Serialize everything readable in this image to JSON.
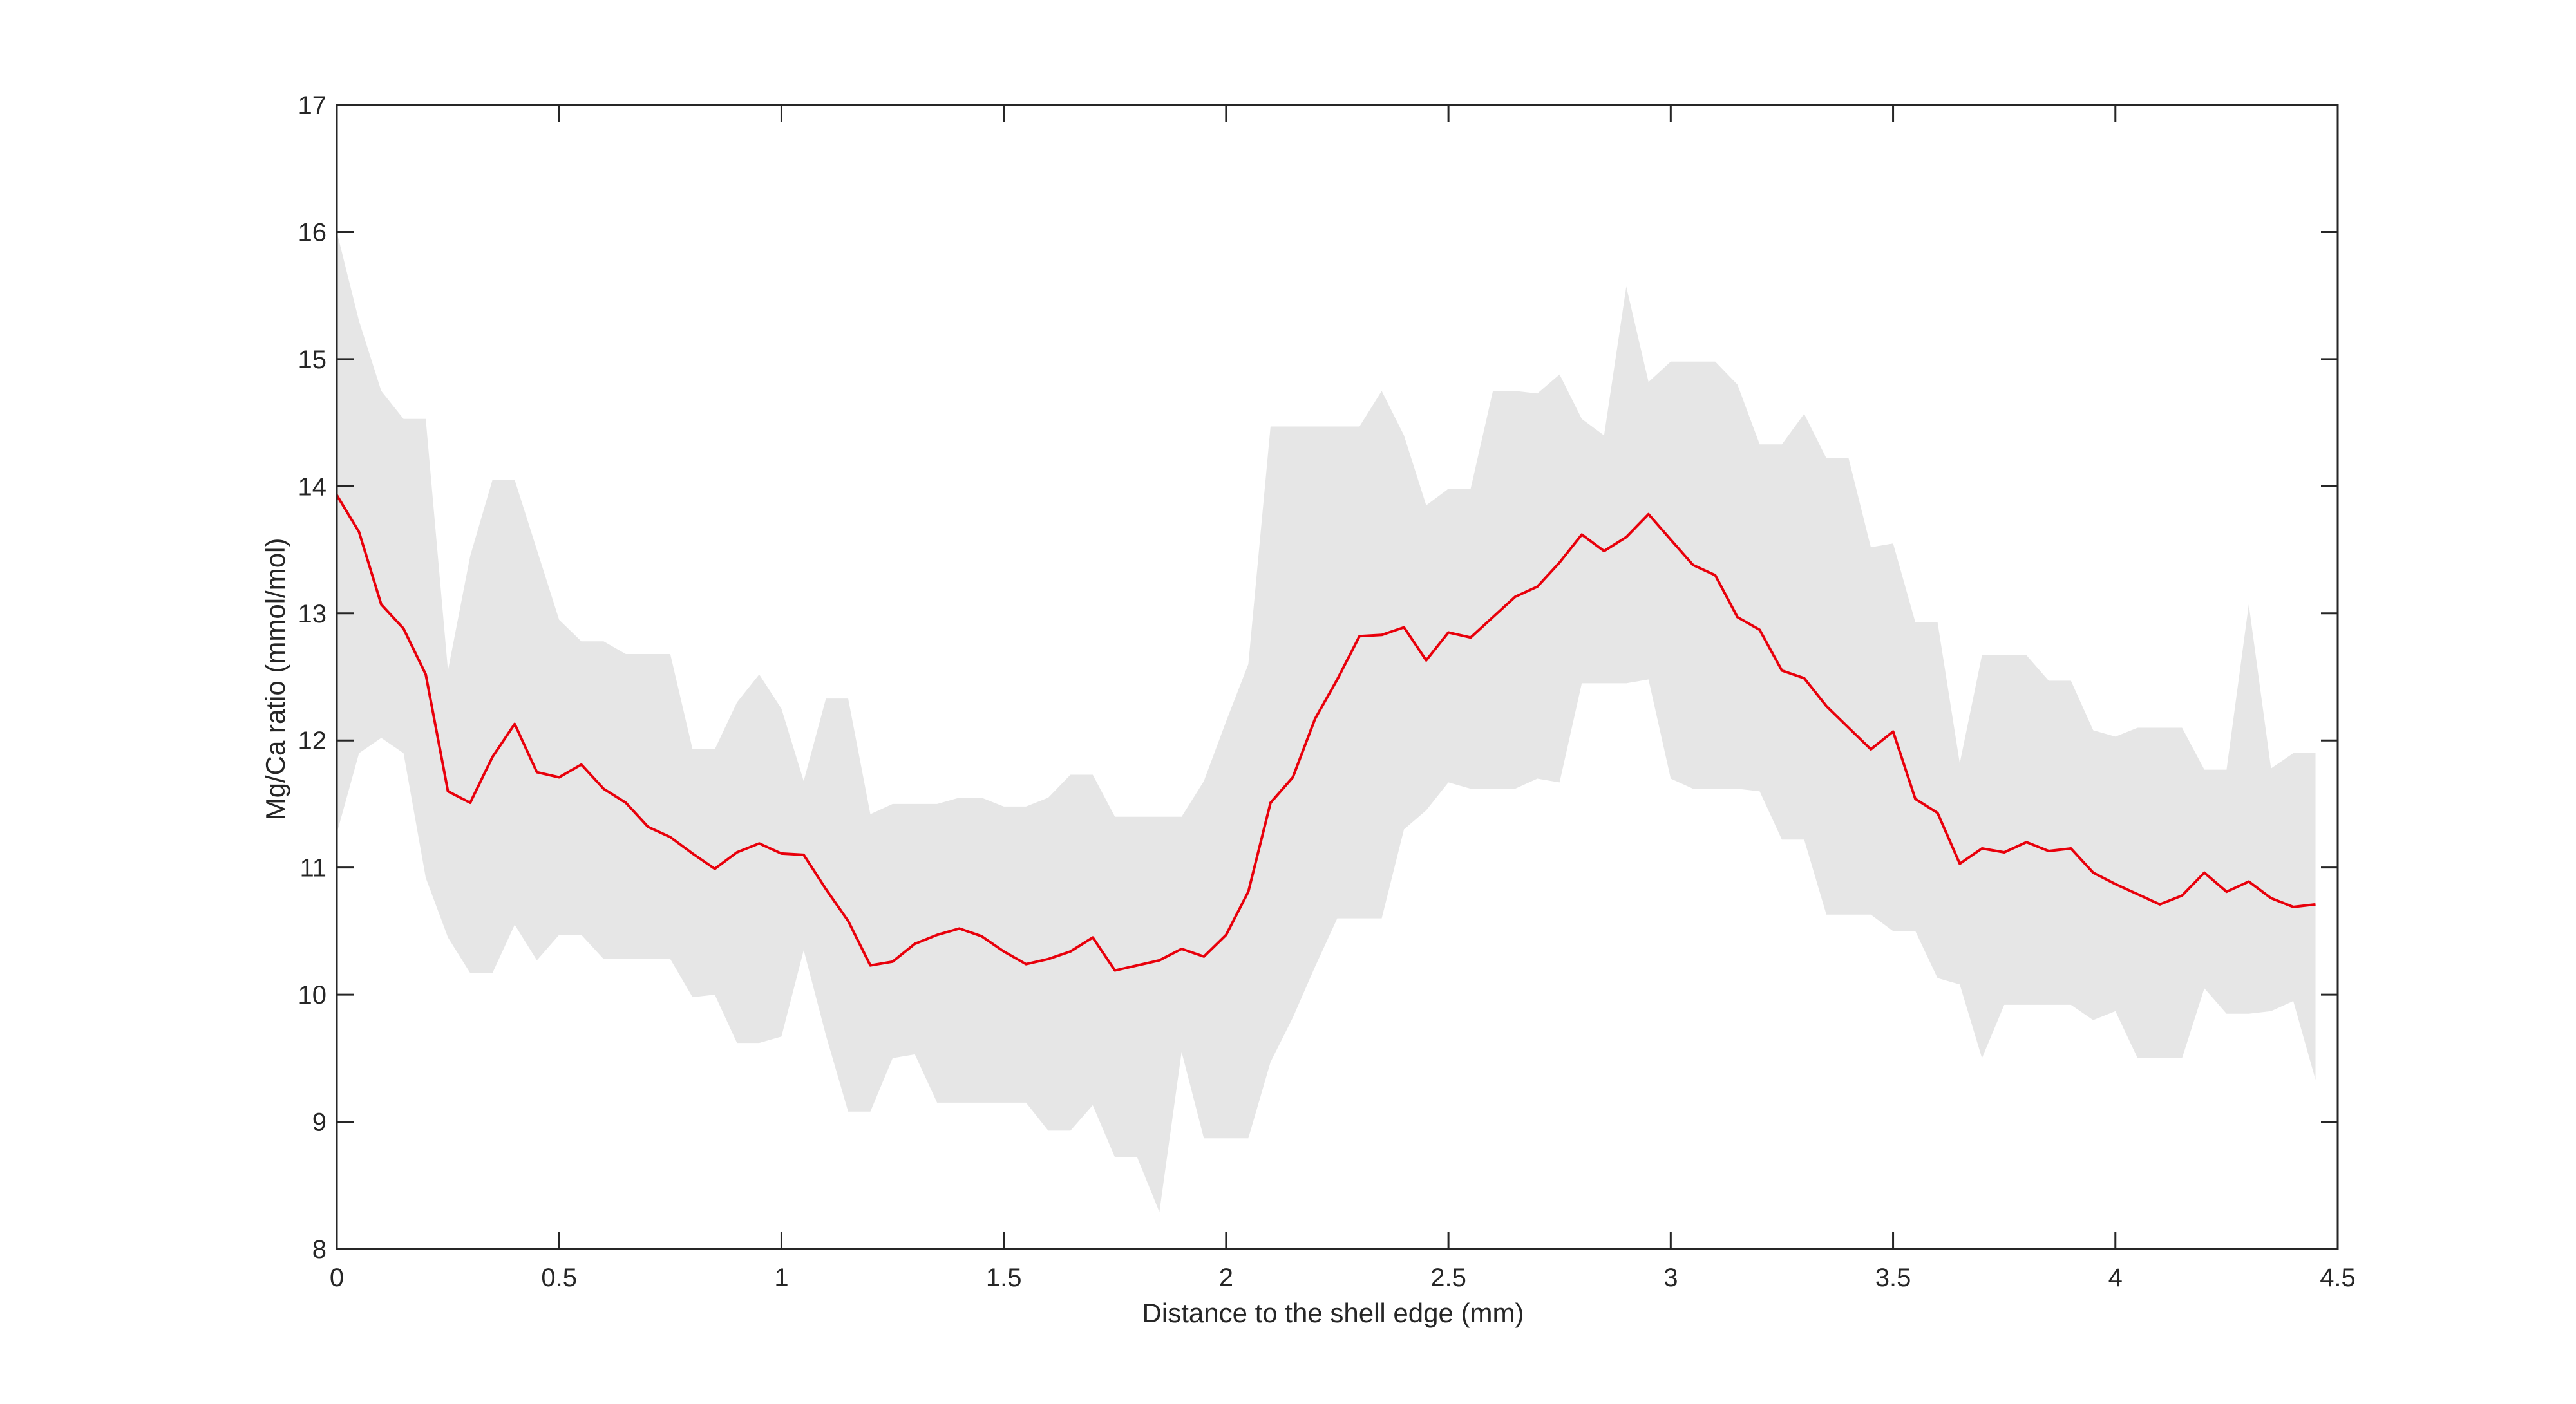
{
  "chart_data": {
    "type": "line",
    "xlabel": "Distance to the shell edge (mm)",
    "ylabel": "Mg/Ca ratio (mmol/mol)",
    "xlim": [
      0,
      4.5
    ],
    "ylim": [
      8,
      17
    ],
    "xticks": [
      0,
      0.5,
      1,
      1.5,
      2,
      2.5,
      3,
      3.5,
      4,
      4.5
    ],
    "xtick_labels": [
      "0",
      "0.5",
      "1",
      "1.5",
      "2",
      "2.5",
      "3",
      "3.5",
      "4",
      "4.5"
    ],
    "yticks": [
      8,
      9,
      10,
      11,
      12,
      13,
      14,
      15,
      16,
      17
    ],
    "ytick_labels": [
      "8",
      "9",
      "10",
      "11",
      "12",
      "13",
      "14",
      "15",
      "16",
      "17"
    ],
    "grid": false,
    "box": true,
    "colors": {
      "mean_line": "#e8000b",
      "band_fill": "#e6e6e6",
      "axis": "#262626"
    },
    "x": [
      0,
      0.05,
      0.1,
      0.15,
      0.2,
      0.25,
      0.3,
      0.35,
      0.4,
      0.45,
      0.5,
      0.55,
      0.6,
      0.65,
      0.7,
      0.75,
      0.8,
      0.85,
      0.9,
      0.95,
      1,
      1.05,
      1.1,
      1.15,
      1.2,
      1.25,
      1.3,
      1.35,
      1.4,
      1.45,
      1.5,
      1.55,
      1.6,
      1.65,
      1.7,
      1.75,
      1.8,
      1.85,
      1.9,
      1.95,
      2,
      2.05,
      2.1,
      2.15,
      2.2,
      2.25,
      2.3,
      2.35,
      2.4,
      2.45,
      2.5,
      2.55,
      2.6,
      2.65,
      2.7,
      2.75,
      2.8,
      2.85,
      2.9,
      2.95,
      3,
      3.05,
      3.1,
      3.15,
      3.2,
      3.25,
      3.3,
      3.35,
      3.4,
      3.45,
      3.5,
      3.55,
      3.6,
      3.65,
      3.7,
      3.75,
      3.8,
      3.85,
      3.9,
      3.95,
      4,
      4.05,
      4.1,
      4.15,
      4.2,
      4.25,
      4.3,
      4.35,
      4.4,
      4.45
    ],
    "series": [
      {
        "role": "mean",
        "values": [
          13.93,
          13.64,
          13.07,
          12.88,
          12.52,
          11.6,
          11.51,
          11.87,
          12.13,
          11.75,
          11.71,
          11.81,
          11.62,
          11.51,
          11.32,
          11.24,
          11.11,
          10.99,
          11.12,
          11.19,
          11.11,
          11.1,
          10.83,
          10.58,
          10.23,
          10.26,
          10.4,
          10.47,
          10.52,
          10.46,
          10.34,
          10.24,
          10.28,
          10.34,
          10.45,
          10.19,
          10.23,
          10.27,
          10.36,
          10.3,
          10.47,
          10.81,
          11.51,
          11.71,
          12.17,
          12.48,
          12.82,
          12.83,
          12.89,
          12.63,
          12.85,
          12.81,
          12.97,
          13.13,
          13.21,
          13.4,
          13.62,
          13.49,
          13.6,
          13.78,
          13.58,
          13.38,
          13.3,
          12.97,
          12.87,
          12.55,
          12.49,
          12.27,
          12.1,
          11.93,
          12.07,
          11.54,
          11.43,
          11.03,
          11.15,
          11.12,
          11.2,
          11.13,
          11.15,
          10.96,
          10.87,
          10.79,
          10.71,
          10.78,
          10.96,
          10.81,
          10.89,
          10.76,
          10.69,
          10.71
        ]
      },
      {
        "role": "band-upper",
        "values": [
          16.0,
          15.3,
          14.75,
          14.53,
          14.53,
          12.55,
          13.45,
          14.05,
          14.05,
          13.5,
          12.95,
          12.78,
          12.78,
          12.68,
          12.68,
          12.68,
          11.93,
          11.93,
          12.3,
          12.52,
          12.25,
          11.68,
          12.33,
          12.33,
          11.42,
          11.5,
          11.5,
          11.5,
          11.55,
          11.55,
          11.48,
          11.48,
          11.55,
          11.73,
          11.73,
          11.4,
          11.4,
          11.4,
          11.4,
          11.68,
          12.15,
          12.6,
          14.47,
          14.47,
          14.47,
          14.47,
          14.47,
          14.75,
          14.4,
          13.85,
          13.98,
          13.98,
          14.75,
          14.75,
          14.73,
          14.88,
          14.53,
          14.4,
          15.57,
          14.82,
          14.98,
          14.98,
          14.98,
          14.8,
          14.33,
          14.33,
          14.57,
          14.22,
          14.22,
          13.52,
          13.55,
          12.93,
          12.93,
          11.82,
          12.67,
          12.67,
          12.67,
          12.47,
          12.47,
          12.08,
          12.03,
          12.1,
          12.1,
          12.1,
          11.77,
          11.77,
          13.07,
          11.78,
          11.9,
          11.9
        ]
      },
      {
        "role": "band-lower",
        "values": [
          11.27,
          11.9,
          12.02,
          11.9,
          10.92,
          10.45,
          10.17,
          10.17,
          10.55,
          10.27,
          10.47,
          10.47,
          10.28,
          10.28,
          10.28,
          10.28,
          9.98,
          10.0,
          9.62,
          9.62,
          9.67,
          10.35,
          9.68,
          9.08,
          9.08,
          9.5,
          9.53,
          9.15,
          9.15,
          9.15,
          9.15,
          9.15,
          8.93,
          8.93,
          9.13,
          8.72,
          8.72,
          8.29,
          9.55,
          8.87,
          8.87,
          8.87,
          9.47,
          9.82,
          10.22,
          10.6,
          10.6,
          10.6,
          11.3,
          11.45,
          11.67,
          11.62,
          11.62,
          11.62,
          11.7,
          11.67,
          12.45,
          12.45,
          12.45,
          12.48,
          11.7,
          11.62,
          11.62,
          11.62,
          11.6,
          11.22,
          11.22,
          10.63,
          10.63,
          10.63,
          10.5,
          10.5,
          10.13,
          10.08,
          9.5,
          9.92,
          9.92,
          9.92,
          9.92,
          9.8,
          9.87,
          9.5,
          9.5,
          9.5,
          10.05,
          9.85,
          9.85,
          9.87,
          9.95,
          9.33
        ]
      }
    ]
  }
}
